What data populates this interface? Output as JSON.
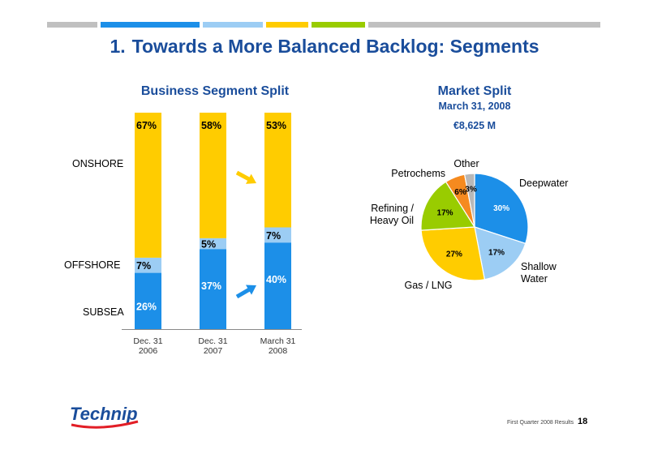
{
  "slide": {
    "number": "1.",
    "title": "Towards a More Balanced Backlog: Segments",
    "footer": "First Quarter 2008 Results",
    "page": "18",
    "logo_text": "Technip"
  },
  "colors": {
    "bar_gray": "#c0c0c0",
    "blue": "#1c8fe8",
    "light_blue": "#9ccdf4",
    "yellow": "#ffcc00",
    "green": "#99cc00",
    "orange": "#f58a1f",
    "gray": "#b8b8b8",
    "title_blue": "#1a4d9b"
  },
  "chart_data": [
    {
      "type": "bar",
      "stacked": true,
      "title": "Business Segment Split",
      "categories": [
        "Dec. 31 2006",
        "Dec. 31 2007",
        "March 31 2008"
      ],
      "category_lines": [
        [
          "Dec. 31",
          "2006"
        ],
        [
          "Dec. 31",
          "2007"
        ],
        [
          "March 31",
          "2008"
        ]
      ],
      "series": [
        {
          "name": "SUBSEA",
          "values": [
            26,
            37,
            40
          ],
          "color": "#1c8fe8"
        },
        {
          "name": "OFFSHORE",
          "values": [
            7,
            5,
            7
          ],
          "color": "#9ccdf4"
        },
        {
          "name": "ONSHORE",
          "values": [
            67,
            58,
            53
          ],
          "color": "#ffcc00"
        }
      ],
      "ylim": [
        0,
        100
      ],
      "value_labels": [
        [
          "26%",
          "7%",
          "67%"
        ],
        [
          "37%",
          "5%",
          "58%"
        ],
        [
          "40%",
          "7%",
          "53%"
        ]
      ]
    },
    {
      "type": "pie",
      "title": "Market Split",
      "subtitle": "March 31, 2008",
      "total": "€8,625 M",
      "slices": [
        {
          "name": "Deepwater",
          "value": 30,
          "label": "30%",
          "color": "#1c8fe8"
        },
        {
          "name": "Shallow Water",
          "name_lines": [
            "Shallow",
            "Water"
          ],
          "value": 17,
          "label": "17%",
          "color": "#9ccdf4"
        },
        {
          "name": "Gas / LNG",
          "name_lines": [
            "Gas / LNG"
          ],
          "value": 27,
          "label": "27%",
          "color": "#ffcc00"
        },
        {
          "name": "Refining / Heavy Oil",
          "name_lines": [
            "Refining /",
            "Heavy Oil"
          ],
          "value": 17,
          "label": "17%",
          "color": "#99cc00"
        },
        {
          "name": "Petrochems",
          "name_lines": [
            "Petrochems"
          ],
          "value": 6,
          "label": "6%",
          "color": "#f58a1f"
        },
        {
          "name": "Other",
          "name_lines": [
            "Other"
          ],
          "value": 3,
          "label": "3%",
          "color": "#b8b8b8"
        }
      ]
    }
  ]
}
